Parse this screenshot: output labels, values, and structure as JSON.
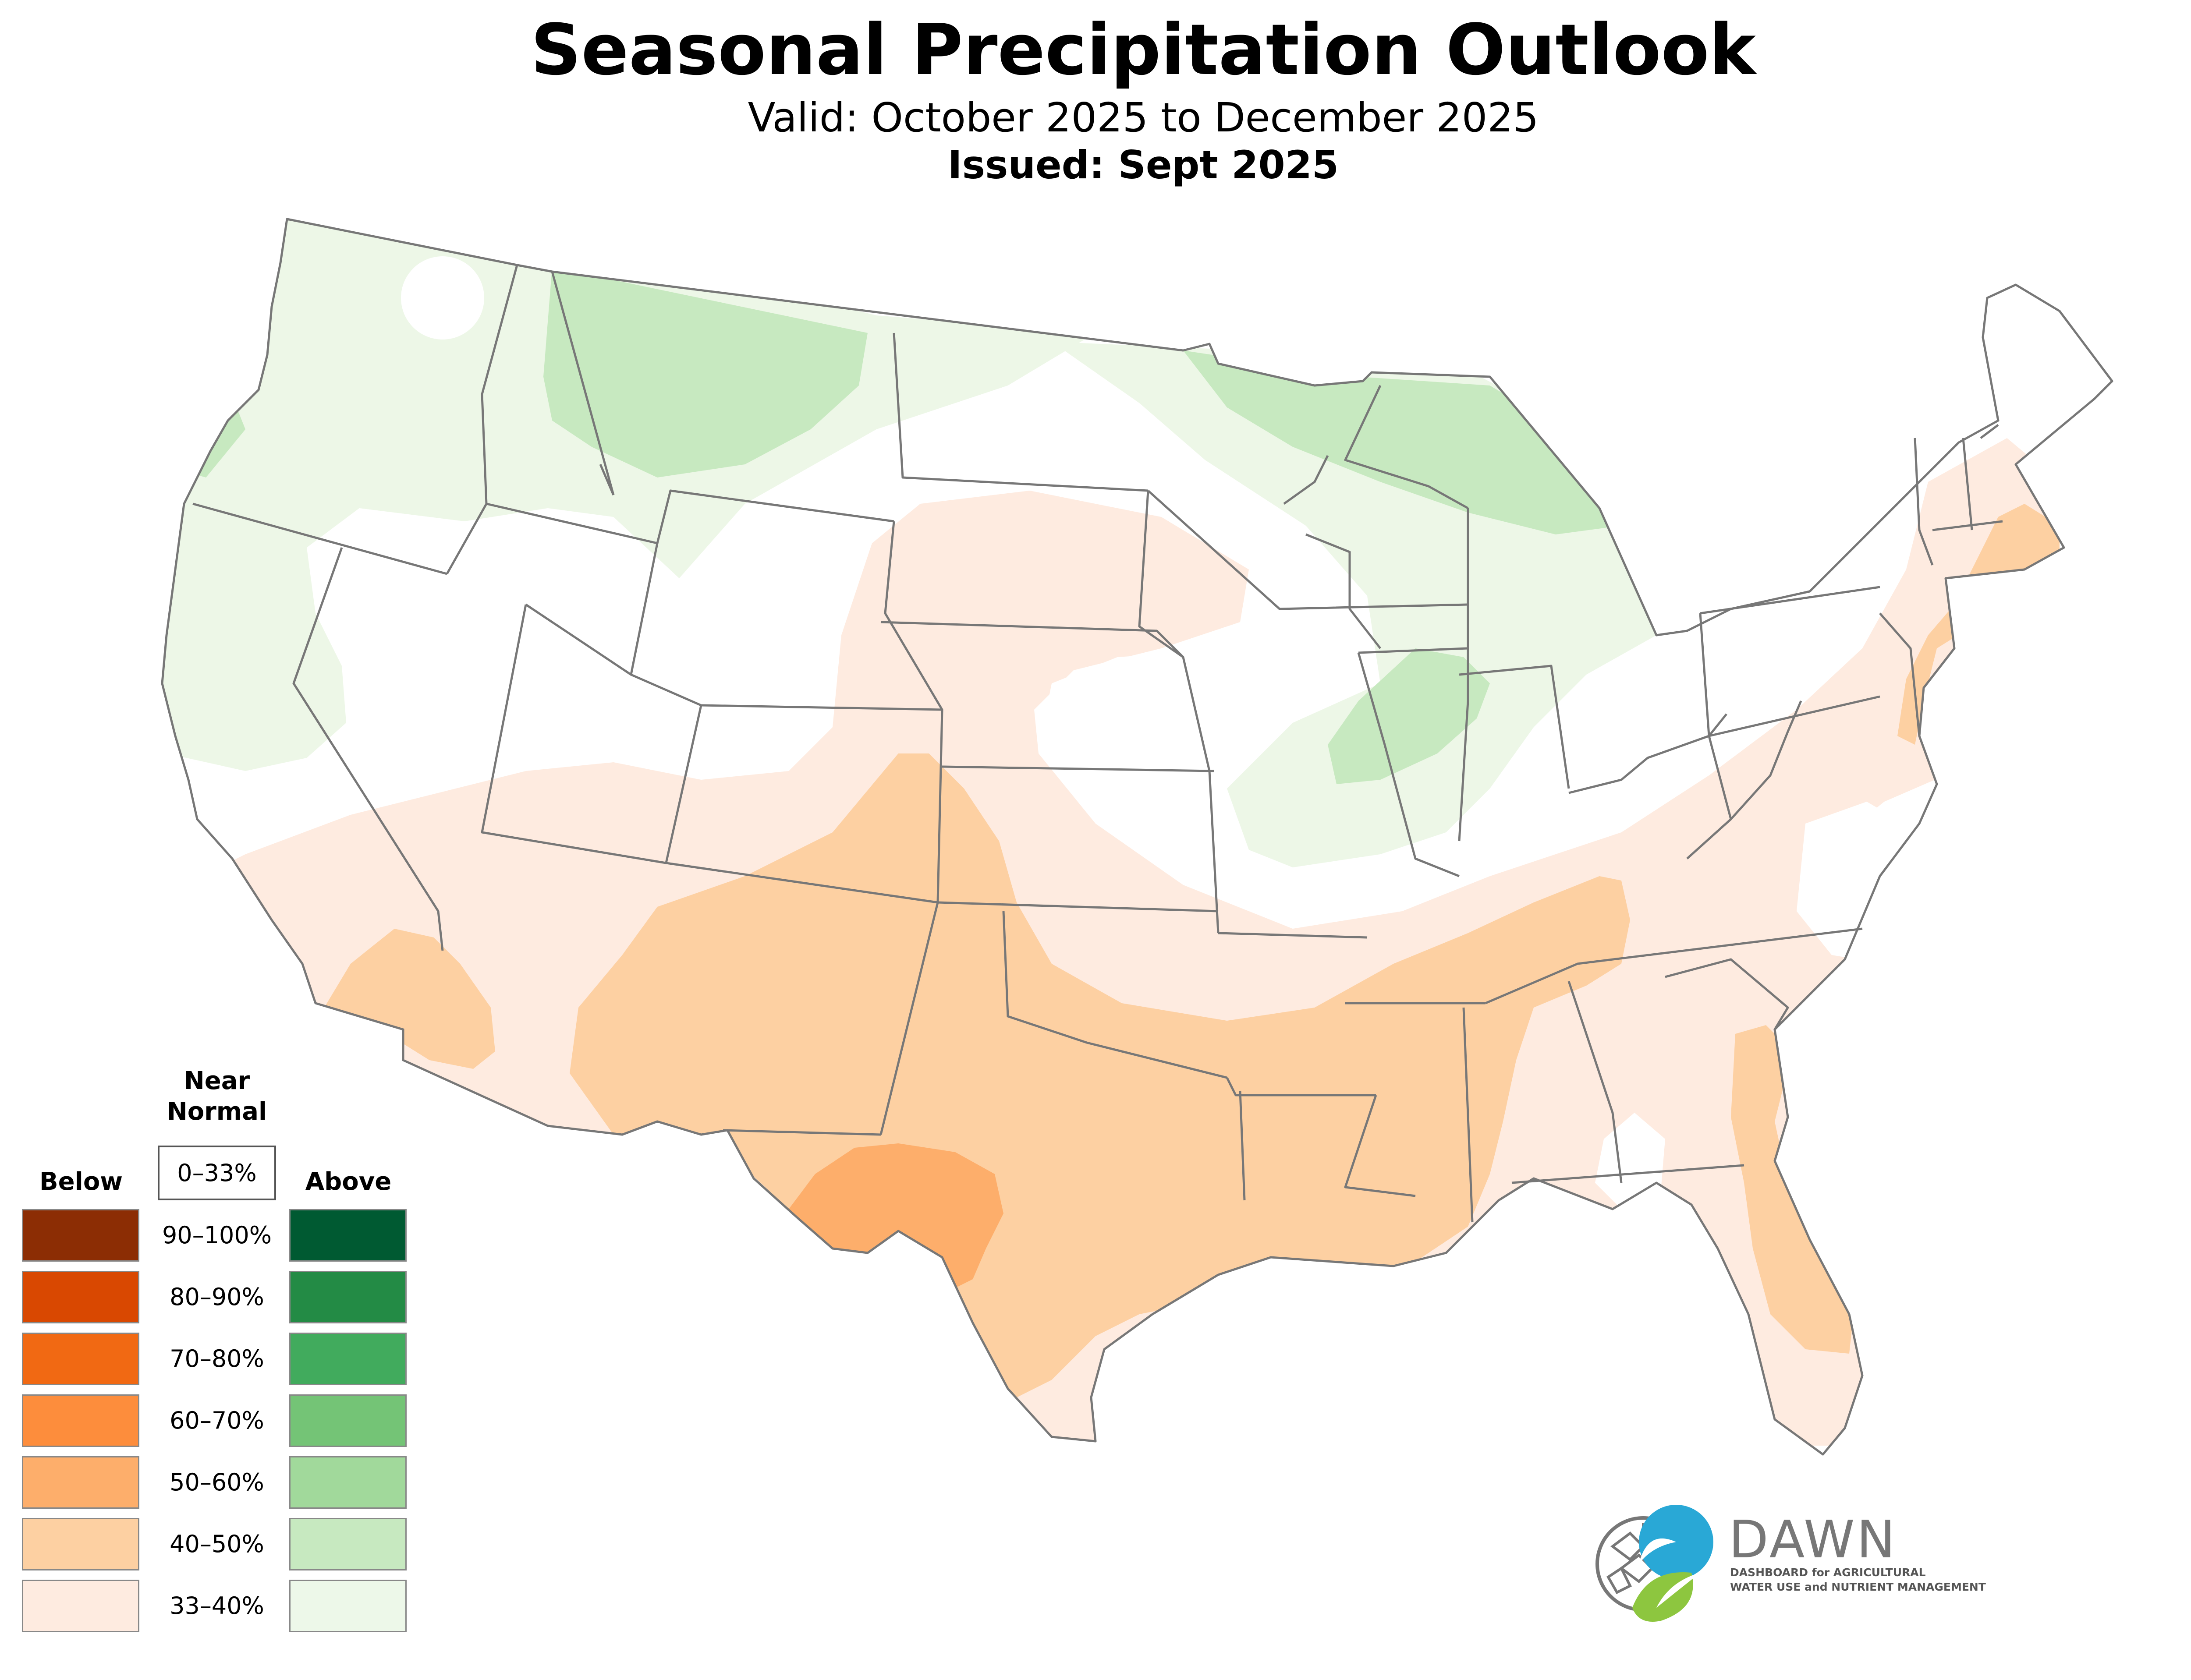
{
  "title": "Seasonal Precipitation Outlook",
  "valid": "Valid: October 2025 to December 2025",
  "issued": "Issued: Sept 2025",
  "legend": {
    "near_normal_line1": "Near",
    "near_normal_line2": "Normal",
    "near_normal_range": "0–33%",
    "below_label": "Below",
    "above_label": "Above",
    "ranges": [
      "90–100%",
      "80–90%",
      "70–80%",
      "60–70%",
      "50–60%",
      "40–50%",
      "33–40%"
    ],
    "below_colors": [
      "#8c2d04",
      "#d94801",
      "#f16913",
      "#fd8d3c",
      "#fdae6b",
      "#fdd0a2",
      "#feebe0"
    ],
    "above_colors": [
      "#005a32",
      "#238b45",
      "#41ab5d",
      "#74c476",
      "#a1d99b",
      "#c7e9c0",
      "#edf8e9"
    ]
  },
  "logo": {
    "name": "DAWN",
    "line1": "DASHBOARD for AGRICULTURAL",
    "line2": "WATER USE and NUTRIENT MANAGEMENT",
    "colors": {
      "blue": "#29a8d6",
      "green": "#8dc63f",
      "gray": "#777777"
    }
  },
  "map_colors": {
    "above_33_40": "#edf7e7",
    "above_40_50": "#c7e9c0",
    "below_33_40": "#feebe0",
    "below_40_50": "#fdd0a2",
    "below_50_60": "#fdae6b",
    "border": "#777777"
  }
}
